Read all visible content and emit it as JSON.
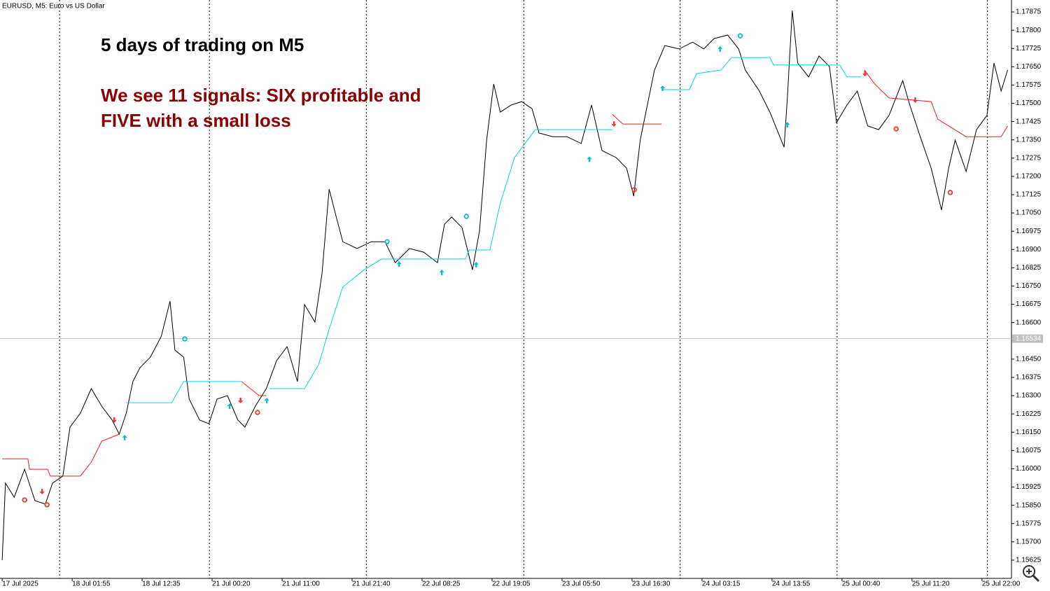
{
  "chart_data": {
    "type": "line",
    "title": "EURUSD, M5:  Euro vs US Dollar",
    "annotations": [
      "5 days of trading on M5",
      "We see 11 signals: SIX profitable and",
      "FIVE with a small loss"
    ],
    "xlim": [
      -4,
      1846
    ],
    "xticks": [
      {
        "value": 0,
        "label": "17 Jul 2025"
      },
      {
        "value": 128,
        "label": "18 Jul 01:55"
      },
      {
        "value": 256,
        "label": "18 Jul 12:35"
      },
      {
        "value": 384,
        "label": "21 Jul 00:20"
      },
      {
        "value": 512,
        "label": "21 Jul 11:00"
      },
      {
        "value": 640,
        "label": "21 Jul 21:40"
      },
      {
        "value": 768,
        "label": "22 Jul 08:25"
      },
      {
        "value": 896,
        "label": "22 Jul 19:05"
      },
      {
        "value": 1024,
        "label": "23 Jul 05:50"
      },
      {
        "value": 1152,
        "label": "23 Jul 16:30"
      },
      {
        "value": 1280,
        "label": "24 Jul 03:15"
      },
      {
        "value": 1408,
        "label": "24 Jul 13:55"
      },
      {
        "value": 1536,
        "label": "25 Jul 00:40"
      },
      {
        "value": 1664,
        "label": "25 Jul 11:20"
      },
      {
        "value": 1792,
        "label": "25 Jul 22:00"
      }
    ],
    "ylim": [
      1.1555,
      1.17924
    ],
    "yticks": [
      1.15625,
      {
        "value": 1.157,
        "label": "1.15700"
      },
      1.15775,
      {
        "value": 1.1585,
        "label": "1.15850"
      },
      1.15925,
      {
        "value": 1.16,
        "label": "1.16000"
      },
      1.16075,
      {
        "value": 1.1615,
        "label": "1.16150"
      },
      1.16225,
      {
        "value": 1.163,
        "label": "1.16300"
      },
      1.16375,
      {
        "value": 1.1645,
        "label": "1.16450"
      },
      {
        "value": 1.166,
        "label": "1.16600"
      },
      1.16675,
      {
        "value": 1.1675,
        "label": "1.16750"
      },
      1.16825,
      {
        "value": 1.169,
        "label": "1.16900"
      },
      1.16975,
      {
        "value": 1.1705,
        "label": "1.17050"
      },
      1.17125,
      {
        "value": 1.172,
        "label": "1.17200"
      },
      1.17275,
      {
        "value": 1.1735,
        "label": "1.17350"
      },
      1.17425,
      {
        "value": 1.175,
        "label": "1.17500"
      },
      1.17575,
      {
        "value": 1.1765,
        "label": "1.17650"
      },
      1.17725,
      {
        "value": 1.178,
        "label": "1.17800"
      },
      1.17875
    ],
    "current_price": 1.16534,
    "day_separators": [
      105,
      379,
      666,
      954,
      1240,
      1527,
      1802
    ],
    "series": [
      {
        "color": "#000000",
        "x": [
          0,
          6,
          22,
          41,
          60,
          79,
          92,
          111,
          124,
          143,
          163,
          182,
          201,
          214,
          227,
          239,
          252,
          271,
          291,
          307,
          316,
          332,
          342,
          361,
          378,
          393,
          412,
          431,
          444,
          463,
          483,
          502,
          521,
          540,
          553,
          572,
          585,
          598,
          611,
          623,
          649,
          675,
          700,
          719,
          745,
          771,
          796,
          809,
          822,
          841,
          860,
          873,
          886,
          899,
          911,
          931,
          950,
          969,
          982,
          1007,
          1033,
          1059,
          1078,
          1097,
          1123,
          1142,
          1155,
          1167,
          1180,
          1193,
          1212,
          1238,
          1263,
          1283,
          1302,
          1327,
          1347,
          1359,
          1385,
          1404,
          1430,
          1436,
          1445,
          1455,
          1475,
          1494,
          1513,
          1526,
          1545,
          1564,
          1583,
          1603,
          1622,
          1647,
          1660,
          1679,
          1699,
          1718,
          1731,
          1743,
          1763,
          1782,
          1801,
          1814,
          1827,
          1839
        ],
        "values": [
          1.15625,
          1.15941,
          1.15883,
          1.15998,
          1.15869,
          1.15855,
          1.15941,
          1.1597,
          1.16171,
          1.16228,
          1.16329,
          1.16257,
          1.162,
          1.16142,
          1.16228,
          1.16358,
          1.16415,
          1.16458,
          1.16544,
          1.16688,
          1.16487,
          1.16458,
          1.16286,
          1.162,
          1.16185,
          1.16286,
          1.163,
          1.162,
          1.16171,
          1.16257,
          1.16329,
          1.16444,
          1.16501,
          1.16358,
          1.16674,
          1.16602,
          1.16803,
          1.17148,
          1.17033,
          1.16932,
          1.16904,
          1.16932,
          1.16932,
          1.16846,
          1.16904,
          1.16889,
          1.16846,
          1.17004,
          1.17033,
          1.1699,
          1.16817,
          1.16975,
          1.17349,
          1.17579,
          1.17464,
          1.17493,
          1.17507,
          1.17478,
          1.17378,
          1.17363,
          1.17363,
          1.17335,
          1.17493,
          1.17306,
          1.17277,
          1.17234,
          1.17119,
          1.17349,
          1.17493,
          1.17637,
          1.17737,
          1.17723,
          1.17751,
          1.17723,
          1.17766,
          1.1778,
          1.17723,
          1.17637,
          1.1755,
          1.17464,
          1.1732,
          1.17522,
          1.17881,
          1.17665,
          1.17608,
          1.17694,
          1.17651,
          1.17421,
          1.17493,
          1.1755,
          1.17407,
          1.17392,
          1.1745,
          1.17593,
          1.17493,
          1.17363,
          1.17234,
          1.17062,
          1.17234,
          1.17349,
          1.1722,
          1.17392,
          1.1745,
          1.17665,
          1.1755,
          1.17637
        ]
      },
      {
        "color": "#00d5e0",
        "x": [
          227,
          310,
          332,
          438,
          438,
          489,
          553,
          579,
          598,
          623,
          662,
          694,
          847,
          854,
          892,
          911,
          937,
          975,
          1116,
          1116,
          1206,
          1257,
          1270,
          1315,
          1334,
          1404,
          1411,
          1532,
          1545,
          1571
        ],
        "values": [
          1.16271,
          1.16271,
          1.16358,
          1.16358,
          null,
          1.16329,
          1.16329,
          1.16429,
          1.16573,
          1.16746,
          1.16817,
          1.16861,
          1.16861,
          1.16898,
          1.16898,
          1.1709,
          1.17277,
          1.17392,
          1.17392,
          null,
          1.17556,
          1.17556,
          1.17622,
          1.17637,
          1.17688,
          1.17688,
          1.17657,
          1.17657,
          1.17608,
          1.17608
        ]
      },
      {
        "color": "#ee1c1c",
        "x": [
          0,
          47,
          50,
          83,
          88,
          143,
          163,
          182,
          214,
          214,
          438,
          470,
          483,
          483,
          1116,
          1135,
          1206,
          1206,
          1577,
          1596,
          1622,
          1699,
          1711,
          1763,
          1827,
          1839
        ],
        "values": [
          1.16041,
          1.16041,
          1.15998,
          1.15998,
          1.1597,
          1.1597,
          1.16027,
          1.16113,
          1.16142,
          null,
          1.16358,
          1.163,
          1.163,
          null,
          1.17455,
          1.17415,
          1.17415,
          null,
          1.17637,
          1.17579,
          1.17522,
          1.17507,
          1.17435,
          1.17363,
          1.17363,
          1.17407
        ]
      }
    ],
    "signals": [
      {
        "kind": "up",
        "color": "#00c0d0",
        "x": [
          224,
          416,
          484,
          726,
          804,
          867,
          1074,
          1208,
          1313,
          1436
        ],
        "values": [
          1.16128,
          1.16257,
          1.1628,
          1.1684,
          1.16806,
          1.16838,
          1.17271,
          1.17562,
          1.17723,
          1.17412
        ]
      },
      {
        "kind": "down",
        "color": "#ee3333",
        "x": [
          73,
          205,
          436,
          1119,
          1578,
          1670
        ],
        "values": [
          1.15906,
          1.162,
          1.1628,
          1.17415,
          1.17622,
          1.17513
        ]
      },
      {
        "kind": "exit",
        "color": "#ee3333",
        "x": [
          41,
          82,
          467,
          1156,
          1635,
          1734
        ],
        "values": [
          1.15872,
          1.15852,
          1.16231,
          1.17145,
          1.17395,
          1.17134
        ]
      },
      {
        "kind": "exit",
        "color": "#00c0d0",
        "x": [
          334,
          704,
          849,
          1350
        ],
        "values": [
          1.16533,
          1.16932,
          1.17036,
          1.17777
        ]
      }
    ]
  }
}
